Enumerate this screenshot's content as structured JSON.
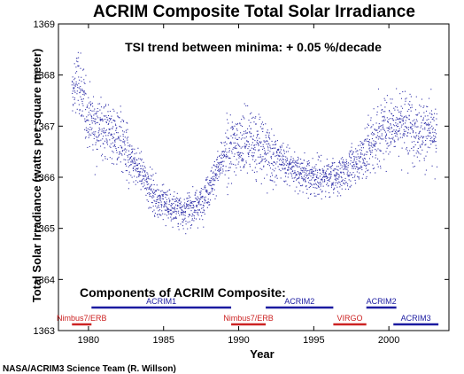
{
  "chart_data": {
    "type": "scatter",
    "title": "ACRIM Composite Total Solar Irradiance",
    "annotation": "TSI trend between minima: + 0.05 %/decade",
    "xlabel": "Year",
    "ylabel": "Total Solar Irradiance (watts per square meter)",
    "xlim": [
      1978,
      2004
    ],
    "ylim": [
      1363,
      1369
    ],
    "xticks": [
      1980,
      1985,
      1990,
      1995,
      2000
    ],
    "yticks": [
      1363,
      1364,
      1365,
      1366,
      1367,
      1368,
      1369
    ],
    "grid": false,
    "series": [
      {
        "color": "#3333aa",
        "trend_points": [
          {
            "x": 1978.9,
            "y": 1367.6
          },
          {
            "x": 1979.3,
            "y": 1367.9
          },
          {
            "x": 1979.8,
            "y": 1367.3
          },
          {
            "x": 1980.5,
            "y": 1367.0
          },
          {
            "x": 1981.5,
            "y": 1366.9
          },
          {
            "x": 1982.5,
            "y": 1366.5
          },
          {
            "x": 1983.5,
            "y": 1366.1
          },
          {
            "x": 1984.5,
            "y": 1365.6
          },
          {
            "x": 1985.5,
            "y": 1365.4
          },
          {
            "x": 1986.5,
            "y": 1365.35
          },
          {
            "x": 1987.5,
            "y": 1365.5
          },
          {
            "x": 1988.5,
            "y": 1366.1
          },
          {
            "x": 1989.5,
            "y": 1366.6
          },
          {
            "x": 1990.5,
            "y": 1366.7
          },
          {
            "x": 1991.5,
            "y": 1366.6
          },
          {
            "x": 1992.5,
            "y": 1366.4
          },
          {
            "x": 1993.5,
            "y": 1366.2
          },
          {
            "x": 1994.5,
            "y": 1366.05
          },
          {
            "x": 1995.5,
            "y": 1366.0
          },
          {
            "x": 1996.5,
            "y": 1366.0
          },
          {
            "x": 1997.5,
            "y": 1366.2
          },
          {
            "x": 1998.5,
            "y": 1366.5
          },
          {
            "x": 1999.5,
            "y": 1366.9
          },
          {
            "x": 2000.5,
            "y": 1367.1
          },
          {
            "x": 2001.5,
            "y": 1367.0
          },
          {
            "x": 2002.5,
            "y": 1366.9
          },
          {
            "x": 2003.2,
            "y": 1366.7
          }
        ]
      }
    ],
    "components": {
      "heading": "Components of ACRIM Composite:",
      "items": [
        {
          "label": "Nimbus7/ERB",
          "start": 1978.9,
          "end": 1980.2,
          "level": "lower",
          "color": "#cc2222"
        },
        {
          "label": "ACRIM1",
          "start": 1980.2,
          "end": 1989.5,
          "level": "upper",
          "color": "#1a1aa0"
        },
        {
          "label": "Nimbus7/ERB",
          "start": 1989.5,
          "end": 1991.8,
          "level": "lower",
          "color": "#cc2222"
        },
        {
          "label": "ACRIM2",
          "start": 1991.8,
          "end": 1996.3,
          "level": "upper",
          "color": "#1a1aa0"
        },
        {
          "label": "VIRGO",
          "start": 1996.3,
          "end": 1998.5,
          "level": "lower",
          "color": "#cc2222"
        },
        {
          "label": "ACRIM2",
          "start": 1998.5,
          "end": 2000.5,
          "level": "upper",
          "color": "#1a1aa0"
        },
        {
          "label": "ACRIM3",
          "start": 2000.3,
          "end": 2003.3,
          "level": "lower",
          "color": "#1a1aa0"
        }
      ]
    }
  },
  "credit": "NASA/ACRIM3 Science Team (R. Willson)"
}
